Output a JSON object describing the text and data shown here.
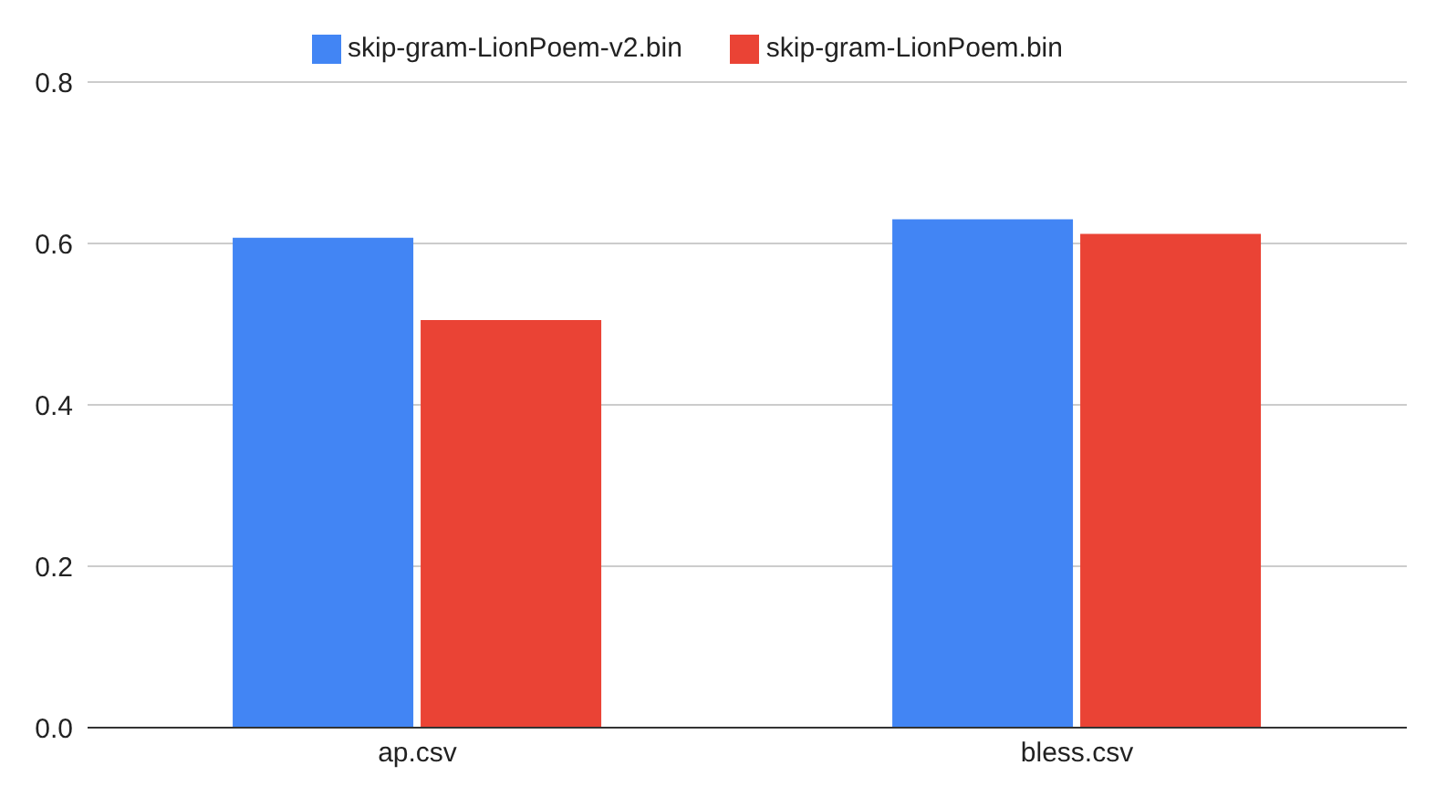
{
  "chart_data": {
    "type": "bar",
    "categories": [
      "ap.csv",
      "bless.csv"
    ],
    "series": [
      {
        "name": "skip-gram-LionPoem-v2.bin",
        "color": "#4285f4",
        "values": [
          0.607,
          0.63
        ]
      },
      {
        "name": "skip-gram-LionPoem.bin",
        "color": "#ea4335",
        "values": [
          0.505,
          0.612
        ]
      }
    ],
    "ylim": [
      0,
      0.8
    ],
    "yticks": [
      {
        "value": 0,
        "label": "0.0"
      },
      {
        "value": 0.2,
        "label": "0.2"
      },
      {
        "value": 0.4,
        "label": "0.4"
      },
      {
        "value": 0.6,
        "label": "0.6"
      },
      {
        "value": 0.8,
        "label": "0.8"
      }
    ],
    "grid": "y",
    "legend": "top"
  }
}
